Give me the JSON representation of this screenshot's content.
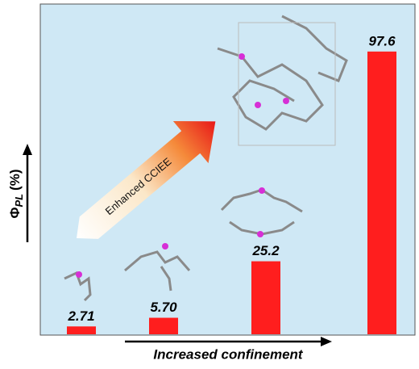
{
  "chart_data": {
    "type": "bar",
    "categories": [
      null,
      null,
      null,
      null
    ],
    "values": [
      2.71,
      5.7,
      25.2,
      97.6
    ],
    "value_labels": [
      "2.71",
      "5.70",
      "25.2",
      "97.6"
    ],
    "color": "#ff1e1e",
    "ylim": [
      0,
      114
    ],
    "y_label": {
      "symbol": "Φ",
      "subscript": "PL",
      "unit": "(%)"
    },
    "x_label": "Increased confinement",
    "annotation": "Enhanced CCIEE"
  }
}
